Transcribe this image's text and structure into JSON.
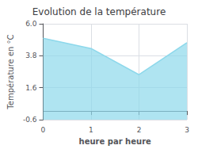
{
  "chart_data": {
    "type": "line",
    "title": "Evolution de la température",
    "xlabel": "heure par heure",
    "ylabel": "Température en °C",
    "x": [
      0,
      1,
      2,
      3
    ],
    "values": [
      5.0,
      4.3,
      2.5,
      4.7
    ],
    "color": "#8dd8eb",
    "xlim": [
      0,
      3
    ],
    "xticks": [
      0,
      1,
      2,
      3
    ],
    "ylim": [
      -0.6,
      6.0
    ],
    "yticks": [
      -0.6,
      1.6,
      3.8,
      {
        "value": 6.0,
        "label": "6.0"
      }
    ],
    "grid": true
  }
}
